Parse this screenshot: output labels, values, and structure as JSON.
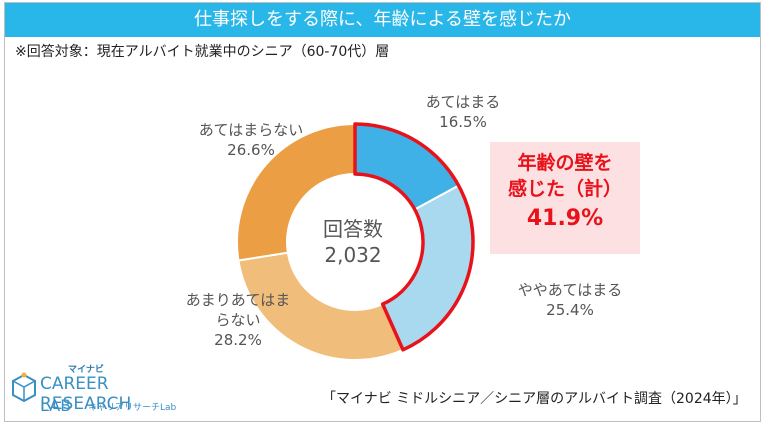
{
  "header": {
    "title": "仕事探しをする際に、年齢による壁を感じたか",
    "subtitle": "※回答対象：現在アルバイト就業中のシニア（60-70代）層"
  },
  "chart_data": {
    "type": "pie",
    "categories": [
      "あてはまる",
      "ややあてはまる",
      "あまりあてはまらない",
      "あてはまらない"
    ],
    "values": [
      16.5,
      25.4,
      28.2,
      26.6
    ],
    "value_labels": [
      "16.5%",
      "25.4%",
      "28.2%",
      "26.6%"
    ],
    "colors": [
      "#3fb1e6",
      "#a8d9ee",
      "#f0bd7a",
      "#ec9e44"
    ],
    "center_label": "回答数",
    "center_value": "2,032",
    "highlight": {
      "label_line1": "年齢の壁を",
      "label_line2": "感じた（計）",
      "value": "41.9%",
      "color": "#e8121a"
    }
  },
  "source": "「マイナビ ミドルシニア／シニア層のアルバイト調査（2024年）」",
  "logo": {
    "small": "マイナビ",
    "line1": "CAREER RESEARCH",
    "line2": "LAB",
    "jp": "キャリアリサーチLab"
  }
}
